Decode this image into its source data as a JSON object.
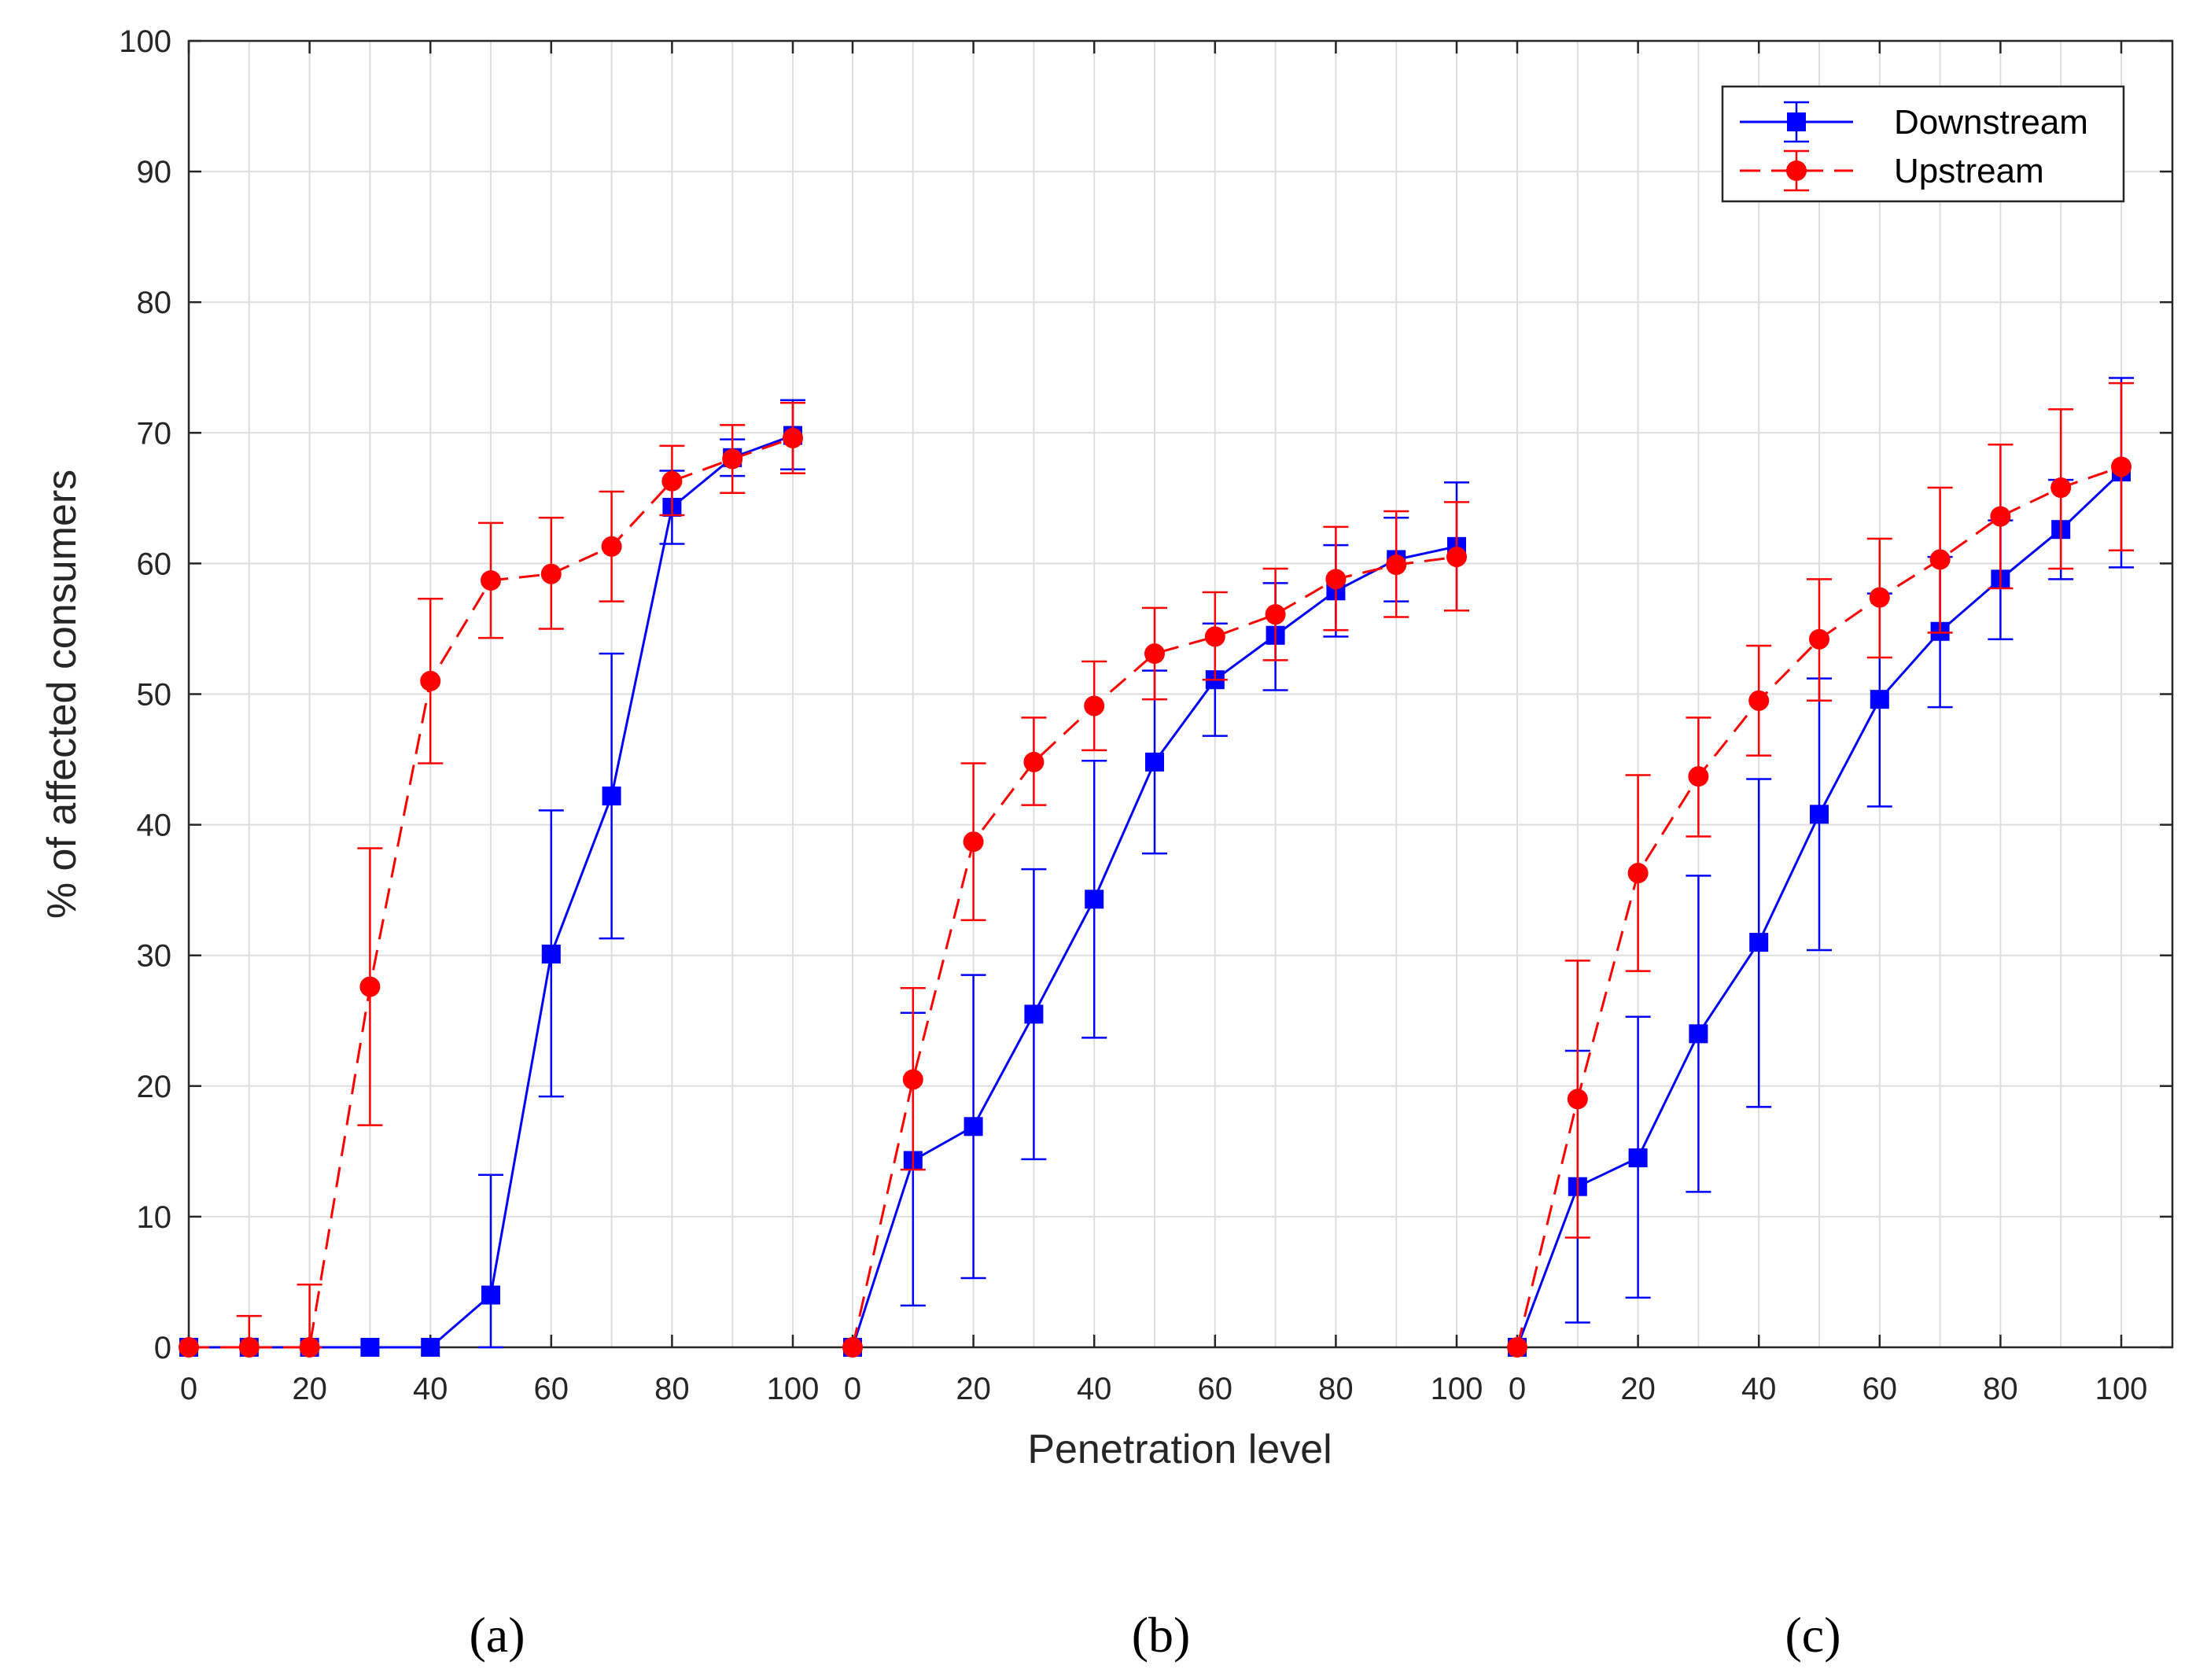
{
  "colors": {
    "downstream": "#0000ff",
    "upstream": "#ff0000",
    "grid": "#dedede",
    "axes": "#262626",
    "background": "#ffffff"
  },
  "chart_data": {
    "type": "line",
    "xlabel": "Penetration level",
    "ylabel": "% of affected consumers",
    "ylim": [
      0,
      100
    ],
    "yticks": [
      0,
      10,
      20,
      30,
      40,
      50,
      60,
      70,
      80,
      90,
      100
    ],
    "grid": true,
    "legend": {
      "placement": "top-right",
      "entries": [
        "Downstream",
        "Upstream"
      ]
    },
    "panels": [
      {
        "label": "(a)",
        "x": [
          0,
          10,
          20,
          30,
          40,
          50,
          60,
          70,
          80,
          90,
          100
        ],
        "xticks": [
          0,
          20,
          40,
          60,
          80,
          100
        ],
        "series": [
          {
            "name": "Downstream",
            "marker": "square",
            "line": "solid",
            "values": [
              0,
              0,
              0,
              0,
              0,
              4,
              30.1,
              42.2,
              64.3,
              68.1,
              69.8
            ],
            "err_low": [
              0,
              0,
              0,
              0,
              0,
              0,
              19.2,
              31.3,
              61.5,
              66.7,
              67.2
            ],
            "err_high": [
              0,
              0,
              0,
              0,
              0,
              13.2,
              41.1,
              53.1,
              67.1,
              69.5,
              72.5
            ]
          },
          {
            "name": "Upstream",
            "marker": "circle",
            "line": "dashed",
            "values": [
              0,
              0,
              0,
              27.6,
              51,
              58.7,
              59.2,
              61.3,
              66.3,
              68,
              69.6
            ],
            "err_low": [
              0,
              0,
              0,
              17,
              44.7,
              54.3,
              55,
              57.1,
              63.7,
              65.4,
              66.9
            ],
            "err_high": [
              0,
              2.4,
              4.8,
              38.2,
              57.3,
              63.1,
              63.5,
              65.5,
              69,
              70.6,
              72.3
            ]
          }
        ]
      },
      {
        "label": "(b)",
        "x": [
          0,
          10,
          20,
          30,
          40,
          50,
          60,
          70,
          80,
          90,
          100
        ],
        "xticks": [
          0,
          20,
          40,
          60,
          80,
          100
        ],
        "series": [
          {
            "name": "Downstream",
            "marker": "square",
            "line": "solid",
            "values": [
              0,
              14.3,
              16.9,
              25.5,
              34.3,
              44.8,
              51.1,
              54.5,
              57.9,
              60.3,
              61.3
            ],
            "err_low": [
              0,
              3.2,
              5.3,
              14.4,
              23.7,
              37.8,
              46.8,
              50.3,
              54.4,
              57.1,
              56.4
            ],
            "err_high": [
              0,
              25.6,
              28.5,
              36.6,
              44.9,
              51.8,
              55.4,
              58.5,
              61.4,
              63.5,
              66.2
            ]
          },
          {
            "name": "Upstream",
            "marker": "circle",
            "line": "dashed",
            "values": [
              0,
              20.5,
              38.7,
              44.8,
              49.1,
              53.1,
              54.4,
              56.1,
              58.8,
              59.9,
              60.5
            ],
            "err_low": [
              0,
              13.6,
              32.7,
              41.5,
              45.7,
              49.6,
              51.1,
              52.6,
              54.9,
              55.9,
              56.4
            ],
            "err_high": [
              0,
              27.5,
              44.7,
              48.2,
              52.5,
              56.6,
              57.8,
              59.6,
              62.8,
              64,
              64.7
            ]
          }
        ]
      },
      {
        "label": "(c)",
        "x": [
          0,
          10,
          20,
          30,
          40,
          50,
          60,
          70,
          80,
          90,
          100
        ],
        "xticks": [
          0,
          20,
          40,
          60,
          80,
          100
        ],
        "series": [
          {
            "name": "Downstream",
            "marker": "square",
            "line": "solid",
            "values": [
              0,
              12.3,
              14.5,
              24,
              31,
              40.8,
              49.6,
              54.8,
              58.8,
              62.6,
              67
            ],
            "err_low": [
              0,
              1.9,
              3.8,
              11.9,
              18.4,
              30.4,
              41.4,
              49,
              54.2,
              58.8,
              59.7
            ],
            "err_high": [
              0,
              22.7,
              25.3,
              36.1,
              43.5,
              51.2,
              57.7,
              60.5,
              63.3,
              66.4,
              74.2
            ]
          },
          {
            "name": "Upstream",
            "marker": "circle",
            "line": "dashed",
            "values": [
              0,
              19,
              36.3,
              43.7,
              49.5,
              54.2,
              57.4,
              60.3,
              63.6,
              65.8,
              67.4
            ],
            "err_low": [
              0,
              8.4,
              28.8,
              39.1,
              45.3,
              49.5,
              52.8,
              54.7,
              58.1,
              59.6,
              61
            ],
            "err_high": [
              0,
              29.6,
              43.8,
              48.2,
              53.7,
              58.8,
              61.9,
              65.8,
              69.1,
              71.8,
              73.8
            ]
          }
        ]
      }
    ]
  }
}
